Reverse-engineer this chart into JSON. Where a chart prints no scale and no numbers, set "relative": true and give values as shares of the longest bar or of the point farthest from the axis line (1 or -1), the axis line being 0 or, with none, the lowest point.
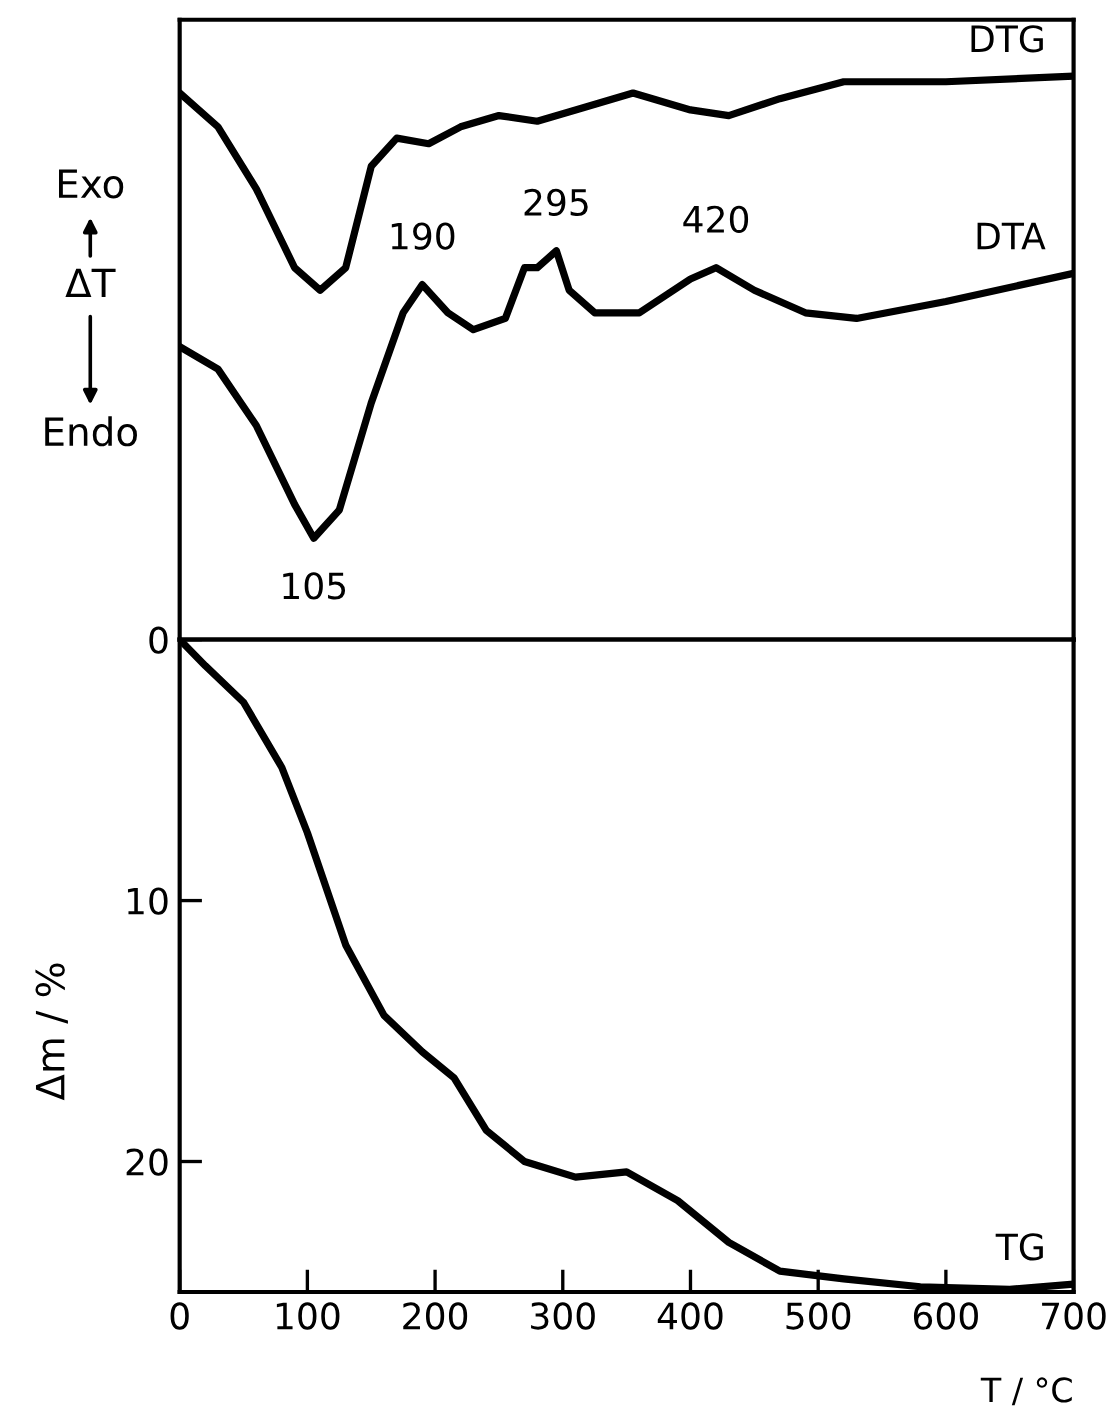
{
  "chart_data": [
    {
      "type": "line",
      "relative": true,
      "ylabel": "ΔT",
      "xlim": [
        0,
        700
      ],
      "annotations": [
        "Exo",
        "Endo",
        {
          "text": "105",
          "x": 105,
          "y": 0.18
        },
        {
          "text": "190",
          "x": 190,
          "y": 0.63
        },
        {
          "text": "295",
          "x": 295,
          "y": 0.69
        },
        {
          "text": "420",
          "x": 420,
          "y": 0.66
        }
      ],
      "series": [
        {
          "name": "DTG",
          "color": "#000000",
          "x": [
            0,
            30,
            60,
            90,
            110,
            130,
            150,
            170,
            195,
            220,
            250,
            280,
            310,
            355,
            400,
            430,
            470,
            520,
            600,
            700
          ],
          "values": [
            0.97,
            0.91,
            0.8,
            0.66,
            0.62,
            0.66,
            0.84,
            0.89,
            0.88,
            0.91,
            0.93,
            0.92,
            0.94,
            0.97,
            0.94,
            0.93,
            0.96,
            0.99,
            0.99,
            1.0
          ]
        },
        {
          "name": "DTA",
          "color": "#000000",
          "x": [
            0,
            30,
            60,
            90,
            105,
            125,
            150,
            175,
            190,
            210,
            230,
            255,
            270,
            280,
            295,
            305,
            325,
            360,
            400,
            420,
            450,
            490,
            530,
            600,
            700
          ],
          "values": [
            0.52,
            0.48,
            0.38,
            0.24,
            0.18,
            0.23,
            0.42,
            0.58,
            0.63,
            0.58,
            0.55,
            0.57,
            0.66,
            0.66,
            0.69,
            0.62,
            0.58,
            0.58,
            0.64,
            0.66,
            0.62,
            0.58,
            0.57,
            0.6,
            0.65
          ]
        }
      ]
    },
    {
      "type": "line",
      "xlabel": "T / °C",
      "ylabel": "Δm / %",
      "xlim": [
        0,
        700
      ],
      "xticks": [
        0,
        100,
        200,
        300,
        400,
        500,
        600,
        700
      ],
      "ylim": [
        25,
        0
      ],
      "yticks": [
        0,
        10,
        20
      ],
      "series": [
        {
          "name": "TG",
          "color": "#000000",
          "x": [
            0,
            20,
            50,
            80,
            100,
            130,
            160,
            190,
            215,
            240,
            270,
            310,
            350,
            390,
            430,
            470,
            520,
            580,
            650,
            700
          ],
          "values": [
            0,
            1.0,
            2.4,
            4.9,
            7.4,
            11.7,
            14.4,
            15.8,
            16.8,
            18.8,
            20.0,
            20.6,
            20.4,
            21.5,
            23.1,
            24.2,
            24.5,
            24.8,
            24.9,
            24.7
          ]
        }
      ]
    }
  ]
}
